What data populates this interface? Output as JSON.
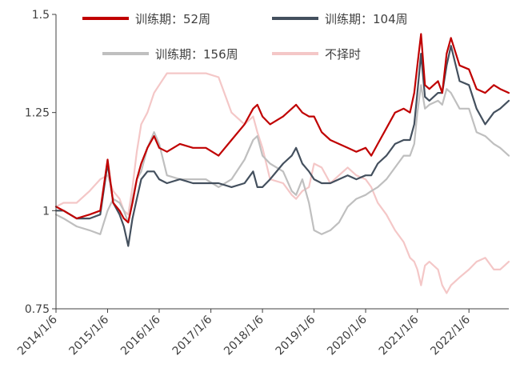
{
  "chart_data": {
    "type": "line",
    "title": "",
    "xlabel": "",
    "ylabel": "",
    "ylim": [
      0.75,
      1.5
    ],
    "xlim": [
      "2014-01-06",
      "2022-10-15"
    ],
    "y_ticks": [
      {
        "value": 0.75,
        "label": "0.75"
      },
      {
        "value": 1.0,
        "label": "1"
      },
      {
        "value": 1.25,
        "label": "1.25"
      },
      {
        "value": 1.5,
        "label": "1.5"
      }
    ],
    "x_ticks": [
      {
        "value": "2014-01-06",
        "label": "2014/1/6"
      },
      {
        "value": "2015-01-06",
        "label": "2015/1/6"
      },
      {
        "value": "2016-01-06",
        "label": "2016/1/6"
      },
      {
        "value": "2017-01-06",
        "label": "2017/1/6"
      },
      {
        "value": "2018-01-06",
        "label": "2018/1/6"
      },
      {
        "value": "2019-01-06",
        "label": "2019/1/6"
      },
      {
        "value": "2020-01-06",
        "label": "2020/1/6"
      },
      {
        "value": "2021-01-06",
        "label": "2021/1/6"
      },
      {
        "value": "2022-01-06",
        "label": "2022/1/6"
      }
    ],
    "grid": false,
    "legend_position": "top",
    "series": [
      {
        "name": "训练期：52周",
        "color": "#C00000",
        "points": [
          [
            "2014-01-06",
            1.01
          ],
          [
            "2014-03-01",
            1.0
          ],
          [
            "2014-06-01",
            0.98
          ],
          [
            "2014-09-01",
            0.99
          ],
          [
            "2014-11-15",
            1.0
          ],
          [
            "2015-01-06",
            1.13
          ],
          [
            "2015-02-15",
            1.02
          ],
          [
            "2015-04-01",
            1.0
          ],
          [
            "2015-05-01",
            0.98
          ],
          [
            "2015-06-01",
            0.97
          ],
          [
            "2015-07-01",
            1.02
          ],
          [
            "2015-08-01",
            1.08
          ],
          [
            "2015-09-01",
            1.12
          ],
          [
            "2015-10-15",
            1.16
          ],
          [
            "2015-12-01",
            1.19
          ],
          [
            "2016-01-06",
            1.16
          ],
          [
            "2016-03-01",
            1.15
          ],
          [
            "2016-06-01",
            1.17
          ],
          [
            "2016-09-01",
            1.16
          ],
          [
            "2016-12-01",
            1.16
          ],
          [
            "2017-03-01",
            1.14
          ],
          [
            "2017-06-01",
            1.18
          ],
          [
            "2017-09-01",
            1.22
          ],
          [
            "2017-11-01",
            1.26
          ],
          [
            "2017-12-01",
            1.27
          ],
          [
            "2018-01-06",
            1.24
          ],
          [
            "2018-03-01",
            1.22
          ],
          [
            "2018-06-01",
            1.24
          ],
          [
            "2018-08-01",
            1.26
          ],
          [
            "2018-09-01",
            1.27
          ],
          [
            "2018-10-15",
            1.25
          ],
          [
            "2018-12-01",
            1.24
          ],
          [
            "2019-01-06",
            1.24
          ],
          [
            "2019-03-01",
            1.2
          ],
          [
            "2019-05-01",
            1.18
          ],
          [
            "2019-07-01",
            1.17
          ],
          [
            "2019-09-01",
            1.16
          ],
          [
            "2019-11-01",
            1.15
          ],
          [
            "2020-01-06",
            1.16
          ],
          [
            "2020-02-15",
            1.14
          ],
          [
            "2020-04-01",
            1.17
          ],
          [
            "2020-06-01",
            1.21
          ],
          [
            "2020-08-01",
            1.25
          ],
          [
            "2020-10-01",
            1.26
          ],
          [
            "2020-11-15",
            1.25
          ],
          [
            "2020-12-15",
            1.3
          ],
          [
            "2021-01-06",
            1.37
          ],
          [
            "2021-02-01",
            1.45
          ],
          [
            "2021-03-01",
            1.32
          ],
          [
            "2021-04-01",
            1.31
          ],
          [
            "2021-06-01",
            1.33
          ],
          [
            "2021-07-01",
            1.3
          ],
          [
            "2021-08-01",
            1.4
          ],
          [
            "2021-09-01",
            1.44
          ],
          [
            "2021-11-01",
            1.37
          ],
          [
            "2022-01-06",
            1.36
          ],
          [
            "2022-03-01",
            1.31
          ],
          [
            "2022-05-01",
            1.3
          ],
          [
            "2022-07-01",
            1.32
          ],
          [
            "2022-08-15",
            1.31
          ],
          [
            "2022-10-15",
            1.3
          ]
        ]
      },
      {
        "name": "训练期：104周",
        "color": "#44505E",
        "points": [
          [
            "2014-01-06",
            1.0
          ],
          [
            "2014-03-01",
            1.0
          ],
          [
            "2014-06-01",
            0.98
          ],
          [
            "2014-09-01",
            0.98
          ],
          [
            "2014-11-15",
            0.99
          ],
          [
            "2015-01-06",
            1.12
          ],
          [
            "2015-02-15",
            1.02
          ],
          [
            "2015-04-01",
            0.99
          ],
          [
            "2015-05-01",
            0.96
          ],
          [
            "2015-06-01",
            0.91
          ],
          [
            "2015-07-01",
            0.98
          ],
          [
            "2015-08-01",
            1.03
          ],
          [
            "2015-09-01",
            1.08
          ],
          [
            "2015-10-15",
            1.1
          ],
          [
            "2015-12-01",
            1.1
          ],
          [
            "2016-01-06",
            1.08
          ],
          [
            "2016-03-01",
            1.07
          ],
          [
            "2016-06-01",
            1.08
          ],
          [
            "2016-09-01",
            1.07
          ],
          [
            "2016-12-01",
            1.07
          ],
          [
            "2017-03-01",
            1.07
          ],
          [
            "2017-06-01",
            1.06
          ],
          [
            "2017-09-01",
            1.07
          ],
          [
            "2017-11-01",
            1.1
          ],
          [
            "2017-12-01",
            1.06
          ],
          [
            "2018-01-06",
            1.06
          ],
          [
            "2018-03-01",
            1.08
          ],
          [
            "2018-06-01",
            1.12
          ],
          [
            "2018-08-01",
            1.14
          ],
          [
            "2018-09-01",
            1.16
          ],
          [
            "2018-10-15",
            1.12
          ],
          [
            "2018-12-01",
            1.1
          ],
          [
            "2019-01-06",
            1.08
          ],
          [
            "2019-03-01",
            1.07
          ],
          [
            "2019-05-01",
            1.07
          ],
          [
            "2019-07-01",
            1.08
          ],
          [
            "2019-09-01",
            1.09
          ],
          [
            "2019-11-01",
            1.08
          ],
          [
            "2020-01-06",
            1.09
          ],
          [
            "2020-02-15",
            1.09
          ],
          [
            "2020-04-01",
            1.12
          ],
          [
            "2020-06-01",
            1.14
          ],
          [
            "2020-08-01",
            1.17
          ],
          [
            "2020-10-01",
            1.18
          ],
          [
            "2020-11-15",
            1.18
          ],
          [
            "2020-12-15",
            1.22
          ],
          [
            "2021-01-06",
            1.3
          ],
          [
            "2021-02-01",
            1.4
          ],
          [
            "2021-03-01",
            1.29
          ],
          [
            "2021-04-01",
            1.28
          ],
          [
            "2021-06-01",
            1.3
          ],
          [
            "2021-07-01",
            1.3
          ],
          [
            "2021-08-01",
            1.37
          ],
          [
            "2021-09-01",
            1.42
          ],
          [
            "2021-11-01",
            1.33
          ],
          [
            "2022-01-06",
            1.32
          ],
          [
            "2022-03-01",
            1.26
          ],
          [
            "2022-05-01",
            1.22
          ],
          [
            "2022-07-01",
            1.25
          ],
          [
            "2022-08-15",
            1.26
          ],
          [
            "2022-10-15",
            1.28
          ]
        ]
      },
      {
        "name": "训练期：156周",
        "color": "#BFBFBF",
        "points": [
          [
            "2014-01-06",
            0.99
          ],
          [
            "2014-03-01",
            0.98
          ],
          [
            "2014-06-01",
            0.96
          ],
          [
            "2014-09-01",
            0.95
          ],
          [
            "2014-11-15",
            0.94
          ],
          [
            "2015-01-06",
            1.0
          ],
          [
            "2015-02-15",
            1.03
          ],
          [
            "2015-04-01",
            1.02
          ],
          [
            "2015-05-01",
            1.0
          ],
          [
            "2015-06-01",
            0.97
          ],
          [
            "2015-07-01",
            1.03
          ],
          [
            "2015-08-01",
            1.08
          ],
          [
            "2015-09-01",
            1.1
          ],
          [
            "2015-10-15",
            1.16
          ],
          [
            "2015-12-01",
            1.2
          ],
          [
            "2016-01-06",
            1.17
          ],
          [
            "2016-03-01",
            1.09
          ],
          [
            "2016-06-01",
            1.08
          ],
          [
            "2016-09-01",
            1.08
          ],
          [
            "2016-12-01",
            1.08
          ],
          [
            "2017-03-01",
            1.06
          ],
          [
            "2017-06-01",
            1.08
          ],
          [
            "2017-09-01",
            1.13
          ],
          [
            "2017-11-01",
            1.18
          ],
          [
            "2017-12-01",
            1.19
          ],
          [
            "2018-01-06",
            1.14
          ],
          [
            "2018-03-01",
            1.12
          ],
          [
            "2018-06-01",
            1.1
          ],
          [
            "2018-08-01",
            1.05
          ],
          [
            "2018-09-01",
            1.04
          ],
          [
            "2018-10-15",
            1.08
          ],
          [
            "2018-12-01",
            1.02
          ],
          [
            "2019-01-06",
            0.95
          ],
          [
            "2019-03-01",
            0.94
          ],
          [
            "2019-05-01",
            0.95
          ],
          [
            "2019-07-01",
            0.97
          ],
          [
            "2019-09-01",
            1.01
          ],
          [
            "2019-11-01",
            1.03
          ],
          [
            "2020-01-06",
            1.04
          ],
          [
            "2020-02-15",
            1.05
          ],
          [
            "2020-04-01",
            1.06
          ],
          [
            "2020-06-01",
            1.08
          ],
          [
            "2020-08-01",
            1.11
          ],
          [
            "2020-10-01",
            1.14
          ],
          [
            "2020-11-15",
            1.14
          ],
          [
            "2020-12-15",
            1.17
          ],
          [
            "2021-01-06",
            1.25
          ],
          [
            "2021-02-01",
            1.32
          ],
          [
            "2021-03-01",
            1.26
          ],
          [
            "2021-04-01",
            1.27
          ],
          [
            "2021-06-01",
            1.28
          ],
          [
            "2021-07-01",
            1.27
          ],
          [
            "2021-08-01",
            1.31
          ],
          [
            "2021-09-01",
            1.3
          ],
          [
            "2021-11-01",
            1.26
          ],
          [
            "2022-01-06",
            1.26
          ],
          [
            "2022-03-01",
            1.2
          ],
          [
            "2022-05-01",
            1.19
          ],
          [
            "2022-07-01",
            1.17
          ],
          [
            "2022-08-15",
            1.16
          ],
          [
            "2022-10-15",
            1.14
          ]
        ]
      },
      {
        "name": "不择时",
        "color": "#F4C7C7",
        "points": [
          [
            "2014-01-06",
            1.01
          ],
          [
            "2014-03-01",
            1.02
          ],
          [
            "2014-06-01",
            1.02
          ],
          [
            "2014-09-01",
            1.05
          ],
          [
            "2014-11-15",
            1.08
          ],
          [
            "2015-01-06",
            1.09
          ],
          [
            "2015-02-15",
            1.05
          ],
          [
            "2015-04-01",
            1.03
          ],
          [
            "2015-05-01",
            1.0
          ],
          [
            "2015-06-01",
            0.99
          ],
          [
            "2015-07-01",
            1.06
          ],
          [
            "2015-08-01",
            1.15
          ],
          [
            "2015-09-01",
            1.22
          ],
          [
            "2015-10-15",
            1.25
          ],
          [
            "2015-12-01",
            1.3
          ],
          [
            "2016-01-06",
            1.32
          ],
          [
            "2016-03-01",
            1.35
          ],
          [
            "2016-06-01",
            1.35
          ],
          [
            "2016-09-01",
            1.35
          ],
          [
            "2016-12-01",
            1.35
          ],
          [
            "2017-03-01",
            1.34
          ],
          [
            "2017-06-01",
            1.25
          ],
          [
            "2017-09-01",
            1.22
          ],
          [
            "2017-11-01",
            1.24
          ],
          [
            "2017-12-01",
            1.2
          ],
          [
            "2018-01-06",
            1.16
          ],
          [
            "2018-03-01",
            1.08
          ],
          [
            "2018-06-01",
            1.07
          ],
          [
            "2018-08-01",
            1.04
          ],
          [
            "2018-09-01",
            1.03
          ],
          [
            "2018-10-15",
            1.05
          ],
          [
            "2018-12-01",
            1.06
          ],
          [
            "2019-01-06",
            1.12
          ],
          [
            "2019-03-01",
            1.11
          ],
          [
            "2019-05-01",
            1.07
          ],
          [
            "2019-07-01",
            1.09
          ],
          [
            "2019-09-01",
            1.11
          ],
          [
            "2019-11-01",
            1.09
          ],
          [
            "2020-01-06",
            1.08
          ],
          [
            "2020-02-15",
            1.06
          ],
          [
            "2020-04-01",
            1.02
          ],
          [
            "2020-06-01",
            0.99
          ],
          [
            "2020-08-01",
            0.95
          ],
          [
            "2020-10-01",
            0.92
          ],
          [
            "2020-11-15",
            0.88
          ],
          [
            "2020-12-15",
            0.87
          ],
          [
            "2021-01-06",
            0.85
          ],
          [
            "2021-02-01",
            0.81
          ],
          [
            "2021-03-01",
            0.86
          ],
          [
            "2021-04-01",
            0.87
          ],
          [
            "2021-06-01",
            0.85
          ],
          [
            "2021-07-01",
            0.81
          ],
          [
            "2021-08-01",
            0.79
          ],
          [
            "2021-09-01",
            0.81
          ],
          [
            "2021-11-01",
            0.83
          ],
          [
            "2022-01-06",
            0.85
          ],
          [
            "2022-03-01",
            0.87
          ],
          [
            "2022-05-01",
            0.88
          ],
          [
            "2022-07-01",
            0.85
          ],
          [
            "2022-08-15",
            0.85
          ],
          [
            "2022-10-15",
            0.87
          ]
        ]
      }
    ]
  }
}
